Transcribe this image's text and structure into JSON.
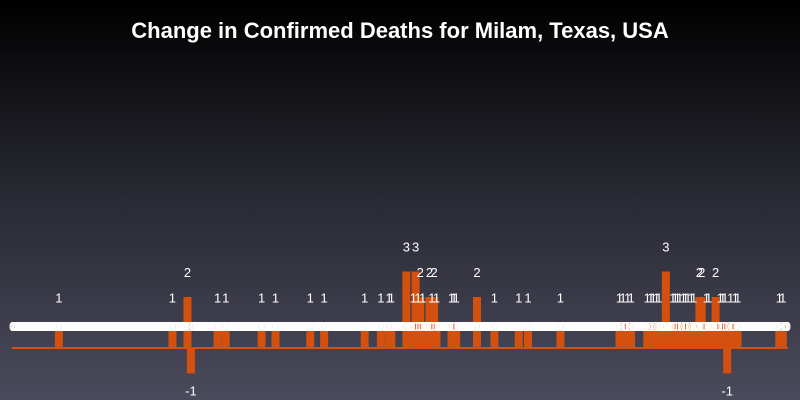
{
  "chart_data": {
    "type": "bar",
    "title": "Change in Confirmed Deaths for Milam, Texas, USA",
    "xlabel": "",
    "ylabel": "",
    "bar_color": "#d4500f",
    "zero_label_color": "#ffffff",
    "text_color": "#ffffff",
    "ylim": [
      -1,
      3
    ],
    "values": [
      0,
      0,
      0,
      0,
      0,
      0,
      0,
      0,
      0,
      0,
      0,
      0,
      0,
      0,
      0,
      0,
      0,
      0,
      0,
      0,
      0,
      0,
      0,
      0,
      0,
      0,
      0,
      0,
      0,
      0,
      0,
      0,
      0,
      0,
      0,
      0,
      0,
      0,
      0,
      0,
      1,
      0,
      0,
      0,
      0,
      0,
      0,
      0,
      0,
      0,
      0,
      0,
      0,
      0,
      0,
      0,
      0,
      0,
      0,
      0,
      0,
      0,
      0,
      0,
      0,
      0,
      0,
      0,
      0,
      0,
      0,
      0,
      0,
      0,
      0,
      0,
      0,
      0,
      0,
      0,
      0,
      0,
      0,
      0,
      0,
      0,
      0,
      0,
      0,
      0,
      0,
      0,
      0,
      0,
      0,
      0,
      0,
      0,
      0,
      0,
      0,
      0,
      0,
      0,
      0,
      0,
      0,
      0,
      0,
      0,
      0,
      0,
      0,
      0,
      0,
      0,
      0,
      0,
      0,
      0,
      0,
      0,
      0,
      0,
      0,
      0,
      0,
      0,
      0,
      0,
      0,
      0,
      0,
      0,
      0,
      0,
      0,
      0,
      1,
      0,
      0,
      0,
      0,
      0,
      0,
      0,
      0,
      0,
      0,
      0,
      0,
      2,
      0,
      0,
      -1,
      0,
      0,
      0,
      0,
      0,
      0,
      0,
      0,
      0,
      0,
      0,
      0,
      0,
      0,
      0,
      0,
      0,
      0,
      0,
      0,
      0,
      0,
      1,
      0,
      0,
      0,
      0,
      0,
      0,
      1,
      0,
      0,
      0,
      0,
      0,
      0,
      0,
      0,
      0,
      0,
      0,
      0,
      0,
      0,
      0,
      0,
      0,
      0,
      0,
      0,
      0,
      0,
      0,
      0,
      0,
      0,
      0,
      0,
      0,
      0,
      1,
      0,
      0,
      0,
      0,
      0,
      0,
      0,
      0,
      0,
      0,
      0,
      1,
      0,
      0,
      0,
      0,
      0,
      0,
      0,
      0,
      0,
      0,
      0,
      0,
      0,
      0,
      0,
      0,
      0,
      0,
      0,
      0,
      0,
      0,
      0,
      0,
      0,
      0,
      0,
      0,
      0,
      1,
      0,
      0,
      0,
      0,
      0,
      0,
      0,
      0,
      0,
      0,
      0,
      1,
      0,
      0,
      0,
      0,
      0,
      0,
      0,
      0,
      0,
      0,
      0,
      0,
      0,
      0,
      0,
      0,
      0,
      0,
      0,
      0,
      0,
      0,
      0,
      0,
      0,
      0,
      0,
      0,
      0,
      0,
      0,
      0,
      0,
      0,
      1,
      0,
      0,
      0,
      0,
      0,
      0,
      0,
      0,
      0,
      0,
      0,
      0,
      0,
      1,
      0,
      0,
      0,
      0,
      0,
      0,
      1,
      0,
      1,
      0,
      0,
      0,
      0,
      0,
      0,
      0,
      0,
      0,
      0,
      0,
      0,
      3,
      0,
      0,
      0,
      0,
      0,
      1,
      0,
      3,
      0,
      1,
      0,
      2,
      0,
      1,
      0,
      0,
      0,
      0,
      0,
      2,
      0,
      1,
      0,
      2,
      0,
      1,
      0,
      0,
      0,
      0,
      0,
      0,
      0,
      0,
      0,
      0,
      0,
      0,
      1,
      0,
      1,
      0,
      1,
      0,
      0,
      0,
      0,
      0,
      0,
      0,
      0,
      0,
      0,
      0,
      0,
      0,
      0,
      0,
      0,
      0,
      2,
      0,
      0,
      0,
      0,
      0,
      0,
      0,
      0,
      0,
      0,
      0,
      0,
      0,
      0,
      1,
      0,
      0,
      0,
      0,
      0,
      0,
      0,
      0,
      0,
      0,
      0,
      0,
      0,
      0,
      0,
      0,
      0,
      0,
      0,
      0,
      1,
      0,
      0,
      0,
      0,
      0,
      0,
      0,
      1,
      0,
      0,
      0,
      0,
      0,
      0,
      0,
      0,
      0,
      0,
      0,
      0,
      0,
      0,
      0,
      0,
      0,
      0,
      0,
      0,
      0,
      0,
      0,
      0,
      0,
      0,
      0,
      1,
      0,
      0,
      0,
      0,
      0,
      0,
      0,
      0,
      0,
      0,
      0,
      0,
      0,
      0,
      0,
      0,
      0,
      0,
      0,
      0,
      0,
      0,
      0,
      0,
      0,
      0,
      0,
      0,
      0,
      0,
      0,
      0,
      0,
      0,
      0,
      0,
      0,
      0,
      0,
      0,
      0,
      0,
      0,
      0,
      0,
      0,
      0,
      0,
      0,
      0,
      1,
      0,
      0,
      1,
      0,
      0,
      0,
      1,
      0,
      0,
      1,
      0,
      0,
      0,
      0,
      0,
      0,
      0,
      0,
      0,
      0,
      0,
      0,
      0,
      1,
      0,
      0,
      1,
      0,
      1,
      0,
      0,
      1,
      0,
      1,
      0,
      0,
      0,
      0,
      0,
      3,
      0,
      0,
      0,
      0,
      0,
      1,
      0,
      1,
      0,
      1,
      0,
      1,
      0,
      0,
      1,
      0,
      1,
      0,
      1,
      0,
      0,
      1,
      0,
      1,
      0,
      0,
      0,
      0,
      2,
      0,
      2,
      0,
      0,
      0,
      1,
      0,
      1,
      0,
      0,
      0,
      0,
      0,
      2,
      0,
      0,
      0,
      1,
      0,
      1,
      0,
      1,
      0,
      -1,
      0,
      0,
      1,
      0,
      0,
      0,
      1,
      0,
      1,
      0,
      0,
      0,
      0,
      0,
      0,
      0,
      0,
      0,
      0,
      0,
      0,
      0,
      0,
      0,
      0,
      0,
      0,
      0,
      0,
      0,
      0,
      0,
      0,
      0,
      0,
      0,
      0,
      0,
      0,
      0,
      0,
      0,
      0,
      0,
      1,
      0,
      0,
      1,
      0,
      0,
      0,
      0
    ]
  }
}
